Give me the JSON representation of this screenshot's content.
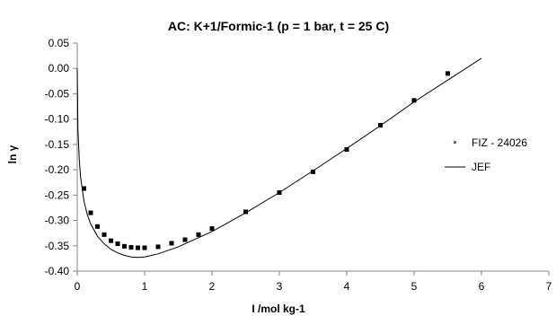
{
  "chart_data": {
    "type": "scatter",
    "title": "AC: K+1/Formic-1 (p = 1 bar, t = 25 C)",
    "xlabel": "I /mol kg-1",
    "ylabel": "ln γ",
    "xlim": [
      0,
      7
    ],
    "ylim": [
      -0.4,
      0.05
    ],
    "x_ticks": [
      0,
      1,
      2,
      3,
      4,
      5,
      6,
      7
    ],
    "y_ticks": [
      0.05,
      0.0,
      -0.05,
      -0.1,
      -0.15,
      -0.2,
      -0.25,
      -0.3,
      -0.35,
      -0.4
    ],
    "y_tick_labels": [
      "0.05",
      "0.00",
      "-0.05",
      "-0.10",
      "-0.15",
      "-0.20",
      "-0.25",
      "-0.30",
      "-0.35",
      "-0.40"
    ],
    "grid": false,
    "legend_position": "right",
    "series": [
      {
        "name": "FIZ - 24026",
        "kind": "markers",
        "color": "#000000",
        "x": [
          0.1,
          0.2,
          0.3,
          0.4,
          0.5,
          0.6,
          0.7,
          0.8,
          0.9,
          1.0,
          1.2,
          1.4,
          1.6,
          1.8,
          2.0,
          2.5,
          3.0,
          3.5,
          4.0,
          4.5,
          5.0,
          5.5
        ],
        "y": [
          -0.237,
          -0.285,
          -0.312,
          -0.328,
          -0.34,
          -0.346,
          -0.351,
          -0.353,
          -0.354,
          -0.354,
          -0.352,
          -0.345,
          -0.338,
          -0.328,
          -0.316,
          -0.283,
          -0.245,
          -0.204,
          -0.16,
          -0.112,
          -0.063,
          -0.01
        ]
      },
      {
        "name": "JEF",
        "kind": "line",
        "color": "#000000",
        "x": [
          0.0,
          0.01,
          0.03,
          0.05,
          0.1,
          0.15,
          0.2,
          0.3,
          0.4,
          0.5,
          0.6,
          0.7,
          0.8,
          0.9,
          1.0,
          1.2,
          1.5,
          2.0,
          2.5,
          3.0,
          3.5,
          4.0,
          4.5,
          5.0,
          5.5,
          6.0
        ],
        "y": [
          0.0,
          -0.12,
          -0.18,
          -0.215,
          -0.262,
          -0.289,
          -0.307,
          -0.331,
          -0.346,
          -0.357,
          -0.364,
          -0.369,
          -0.372,
          -0.373,
          -0.372,
          -0.366,
          -0.352,
          -0.322,
          -0.285,
          -0.245,
          -0.202,
          -0.158,
          -0.113,
          -0.066,
          -0.023,
          0.02
        ]
      }
    ]
  }
}
